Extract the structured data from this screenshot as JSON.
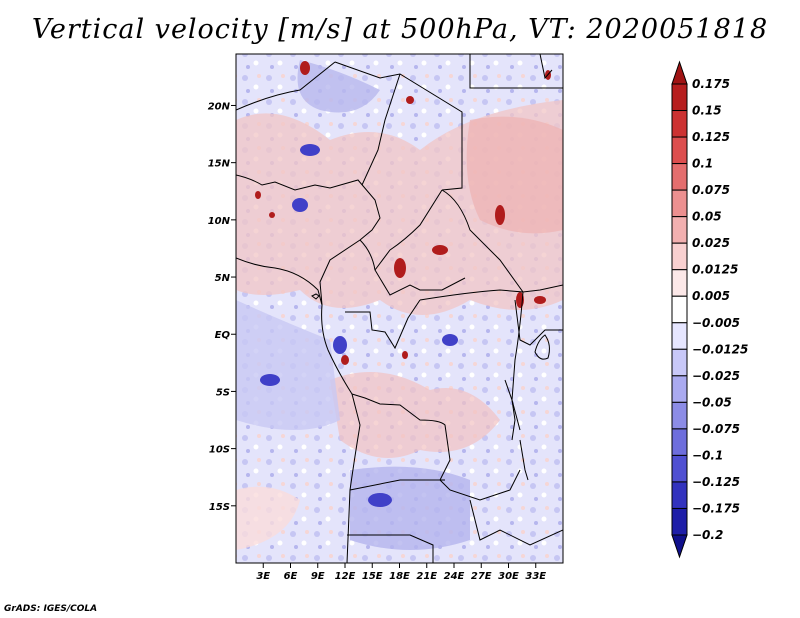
{
  "title": "Vertical velocity [m/s] at 500hPa, VT: 2020051818",
  "credit": "GrADS: IGES/COLA",
  "map": {
    "lon_range": [
      0,
      36
    ],
    "lat_range": [
      -20,
      24.5
    ],
    "lat_ticks": [
      {
        "value": 20,
        "label": "20N"
      },
      {
        "value": 15,
        "label": "15N"
      },
      {
        "value": 10,
        "label": "10N"
      },
      {
        "value": 5,
        "label": "5N"
      },
      {
        "value": 0,
        "label": "EQ"
      },
      {
        "value": -5,
        "label": "5S"
      },
      {
        "value": -10,
        "label": "10S"
      },
      {
        "value": -15,
        "label": "15S"
      }
    ],
    "lon_ticks": [
      {
        "value": 3,
        "label": "3E"
      },
      {
        "value": 6,
        "label": "6E"
      },
      {
        "value": 9,
        "label": "9E"
      },
      {
        "value": 12,
        "label": "12E"
      },
      {
        "value": 15,
        "label": "15E"
      },
      {
        "value": 18,
        "label": "18E"
      },
      {
        "value": 21,
        "label": "21E"
      },
      {
        "value": 24,
        "label": "24E"
      },
      {
        "value": 27,
        "label": "27E"
      },
      {
        "value": 30,
        "label": "30E"
      },
      {
        "value": 33,
        "label": "33E"
      }
    ]
  },
  "colorbar": {
    "levels": [
      "0.175",
      "0.15",
      "0.125",
      "0.1",
      "0.075",
      "0.05",
      "0.025",
      "0.0125",
      "0.005",
      "-0.005",
      "-0.0125",
      "-0.025",
      "-0.05",
      "-0.075",
      "-0.1",
      "-0.125",
      "-0.175",
      "-0.2"
    ],
    "colors": [
      "#a01414",
      "#b61e1e",
      "#cc3232",
      "#dc4e4e",
      "#e46e6e",
      "#ec9090",
      "#f2b0b0",
      "#f8d0d0",
      "#fce8e8",
      "#ffffff",
      "#e6e6ff",
      "#c8c8f8",
      "#aaaaf0",
      "#8c8ce6",
      "#6e6edc",
      "#5050d2",
      "#3232be",
      "#1e1ea8",
      "#10108c"
    ]
  }
}
